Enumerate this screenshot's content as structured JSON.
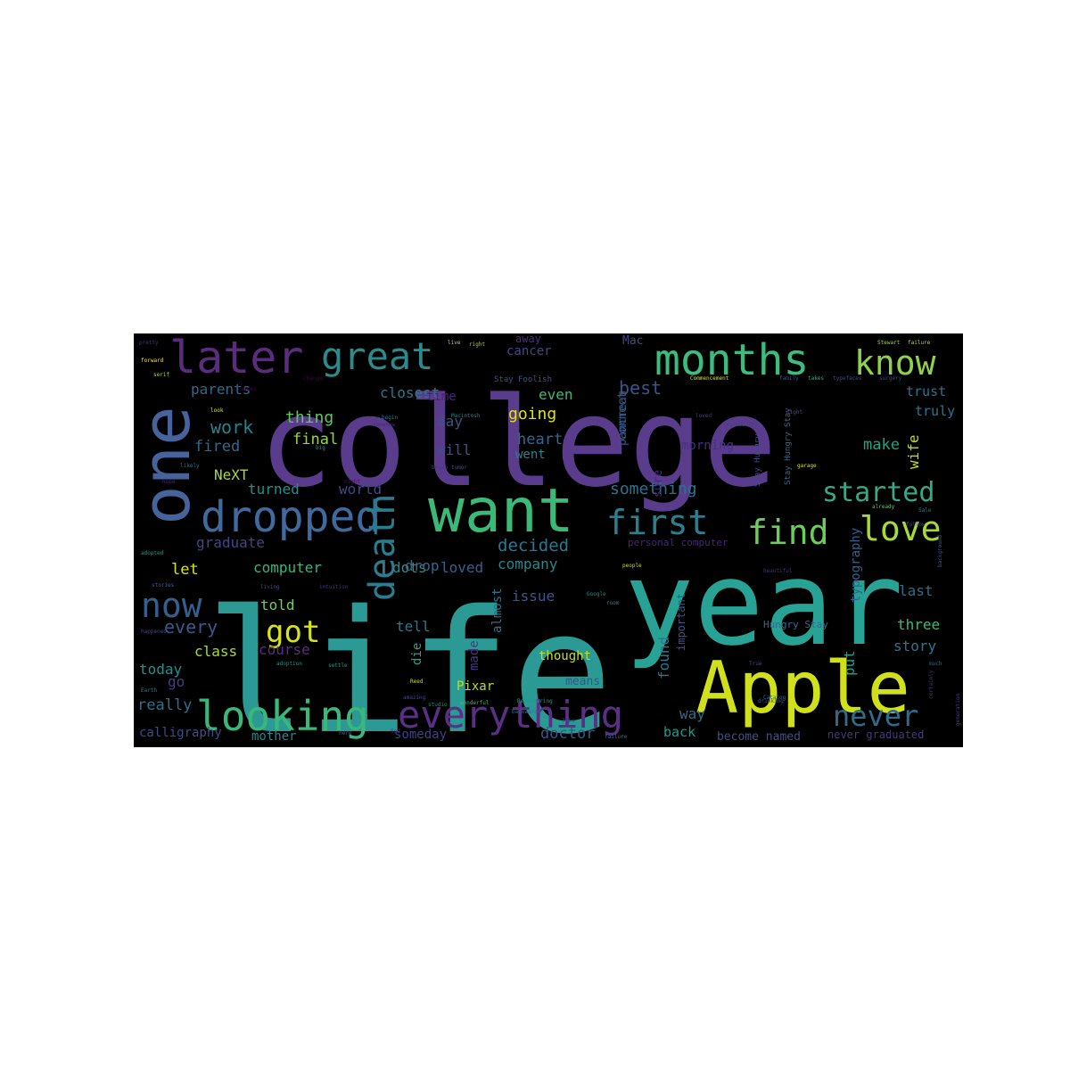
{
  "background": "#000000",
  "words": [
    {
      "text": "college",
      "color": "#5a3c8c",
      "size": 8
    },
    {
      "text": "life",
      "color": "#2b9a94",
      "size": 8
    },
    {
      "text": "year",
      "color": "#28a294",
      "size": 6
    },
    {
      "text": "Apple",
      "color": "#d0e11c",
      "size": 5
    },
    {
      "text": "one",
      "color": "#46639c",
      "size": 5
    },
    {
      "text": "want",
      "color": "#3aba76",
      "size": 5
    },
    {
      "text": "dropped",
      "color": "#3f6a9b",
      "size": 4
    },
    {
      "text": "later",
      "color": "#5b2c7e",
      "size": 4
    },
    {
      "text": "months",
      "color": "#3cbc7e",
      "size": 4
    },
    {
      "text": "looking",
      "color": "#3bb77c",
      "size": 4
    },
    {
      "text": "everything",
      "color": "#5b2f85",
      "size": 4
    },
    {
      "text": "death",
      "color": "#2a7c8e",
      "size": 4
    },
    {
      "text": "great",
      "color": "#2b8b8c",
      "size": 3
    },
    {
      "text": "know",
      "color": "#8fd14a",
      "size": 3
    },
    {
      "text": "first",
      "color": "#2e7f8e",
      "size": 3
    },
    {
      "text": "find",
      "color": "#6ccd5a",
      "size": 3
    },
    {
      "text": "love",
      "color": "#a6db36",
      "size": 3
    },
    {
      "text": "now",
      "color": "#34608d",
      "size": 3
    },
    {
      "text": "got",
      "color": "#d6e21a",
      "size": 3
    },
    {
      "text": "never",
      "color": "#2d6d8e",
      "size": 3
    },
    {
      "text": "started",
      "color": "#37a98a",
      "size": 2
    },
    {
      "text": "parents",
      "color": "#31688e",
      "size": 1
    },
    {
      "text": "closest",
      "color": "#2a788e",
      "size": 1
    },
    {
      "text": "even",
      "color": "#3bbb75",
      "size": 1
    },
    {
      "text": "best",
      "color": "#39568c",
      "size": 1
    },
    {
      "text": "cancer",
      "color": "#3e4a89",
      "size": 1
    },
    {
      "text": "away",
      "color": "#46337e",
      "size": 1
    },
    {
      "text": "Mac",
      "color": "#3e4a89",
      "size": 1
    },
    {
      "text": "time",
      "color": "#482374",
      "size": 1
    },
    {
      "text": "connect",
      "color": "#33638d",
      "size": 1
    },
    {
      "text": "pancreas",
      "color": "#3a548c",
      "size": 1
    },
    {
      "text": "trust",
      "color": "#2c728e",
      "size": 1
    },
    {
      "text": "truly",
      "color": "#2a768e",
      "size": 1
    },
    {
      "text": "work",
      "color": "#25848e",
      "size": 2
    },
    {
      "text": "thing",
      "color": "#5ec962",
      "size": 1
    },
    {
      "text": "final",
      "color": "#93d741",
      "size": 1
    },
    {
      "text": "fired",
      "color": "#31688e",
      "size": 1
    },
    {
      "text": "going",
      "color": "#dfe318",
      "size": 1
    },
    {
      "text": "day",
      "color": "#3b528b",
      "size": 1
    },
    {
      "text": "heart",
      "color": "#31688e",
      "size": 1
    },
    {
      "text": "went",
      "color": "#25838e",
      "size": 1
    },
    {
      "text": "morning",
      "color": "#46327e",
      "size": 1
    },
    {
      "text": "will",
      "color": "#3b528b",
      "size": 1
    },
    {
      "text": "make",
      "color": "#20a386",
      "size": 1
    },
    {
      "text": "wife",
      "color": "#bddf26",
      "size": 1
    },
    {
      "text": "NeXT",
      "color": "#a5db36",
      "size": 1
    },
    {
      "text": "turned",
      "color": "#21918c",
      "size": 1
    },
    {
      "text": "world",
      "color": "#3e4989",
      "size": 1
    },
    {
      "text": "something",
      "color": "#2c728e",
      "size": 1
    },
    {
      "text": "sure",
      "color": "#482677",
      "size": 1
    },
    {
      "text": "graduate",
      "color": "#414487",
      "size": 1
    },
    {
      "text": "dots",
      "color": "#21918c",
      "size": 1
    },
    {
      "text": "loved",
      "color": "#34618d",
      "size": 1
    },
    {
      "text": "decided",
      "color": "#2a788e",
      "size": 1
    },
    {
      "text": "personal computer",
      "color": "#482575",
      "size": 1
    },
    {
      "text": "let",
      "color": "#dde318",
      "size": 1
    },
    {
      "text": "computer",
      "color": "#35b779",
      "size": 1
    },
    {
      "text": "drop",
      "color": "#31688e",
      "size": 1
    },
    {
      "text": "company",
      "color": "#23898e",
      "size": 1
    },
    {
      "text": "typography",
      "color": "#33638d",
      "size": 1
    },
    {
      "text": "told",
      "color": "#73d056",
      "size": 1
    },
    {
      "text": "every",
      "color": "#38598c",
      "size": 1
    },
    {
      "text": "tell",
      "color": "#2a788e",
      "size": 1
    },
    {
      "text": "almost",
      "color": "#2c728e",
      "size": 1
    },
    {
      "text": "issue",
      "color": "#39568c",
      "size": 1
    },
    {
      "text": "last",
      "color": "#2f6c8e",
      "size": 1
    },
    {
      "text": "three",
      "color": "#3dbc74",
      "size": 1
    },
    {
      "text": "class",
      "color": "#a8db34",
      "size": 1
    },
    {
      "text": "course",
      "color": "#5c2c84",
      "size": 1
    },
    {
      "text": "made",
      "color": "#443983",
      "size": 1
    },
    {
      "text": "important",
      "color": "#3b528b",
      "size": 1
    },
    {
      "text": "story",
      "color": "#2b758e",
      "size": 1
    },
    {
      "text": "put",
      "color": "#1f9e89",
      "size": 1
    },
    {
      "text": "today",
      "color": "#21918c",
      "size": 1
    },
    {
      "text": "die",
      "color": "#22a785",
      "size": 1
    },
    {
      "text": "thought",
      "color": "#c2df23",
      "size": 1
    },
    {
      "text": "found",
      "color": "#2a788e",
      "size": 1
    },
    {
      "text": "go",
      "color": "#433e85",
      "size": 1
    },
    {
      "text": "Pixar",
      "color": "#b5de2b",
      "size": 1
    },
    {
      "text": "means",
      "color": "#3b528b",
      "size": 1
    },
    {
      "text": "really",
      "color": "#2d708e",
      "size": 1
    },
    {
      "text": "way",
      "color": "#2f6c8e",
      "size": 1
    },
    {
      "text": "calligraphy",
      "color": "#3e4c8a",
      "size": 1
    },
    {
      "text": "mother",
      "color": "#25848e",
      "size": 1
    },
    {
      "text": "someday",
      "color": "#424086",
      "size": 1
    },
    {
      "text": "doctor",
      "color": "#3a548c",
      "size": 1
    },
    {
      "text": "back",
      "color": "#1e9c89",
      "size": 1
    },
    {
      "text": "become named",
      "color": "#3b528b",
      "size": 1
    },
    {
      "text": "never graduated",
      "color": "#443983",
      "size": 1
    },
    {
      "text": "Stay Foolish",
      "color": "#3a548c",
      "size": 0
    },
    {
      "text": "Stay Hungry",
      "color": "#3e4a89",
      "size": 0
    },
    {
      "text": "Hungry Stay",
      "color": "#2f6b8e",
      "size": 0
    },
    {
      "text": "Stay Hungry Stay",
      "color": "#31688e",
      "size": 0
    },
    {
      "text": "pretty",
      "color": "#46327e",
      "size": 0
    },
    {
      "text": "live",
      "color": "#a5db36",
      "size": 0
    },
    {
      "text": "right",
      "color": "#9fda3a",
      "size": 0
    },
    {
      "text": "Stewart",
      "color": "#a0da39",
      "size": 0
    },
    {
      "text": "failure",
      "color": "#a8db34",
      "size": 0
    },
    {
      "text": "forward",
      "color": "#fde725",
      "size": 0
    },
    {
      "text": "serif",
      "color": "#a2da37",
      "size": 0
    },
    {
      "text": "change",
      "color": "#440154",
      "size": 0
    },
    {
      "text": "Commencement",
      "color": "#c8e020",
      "size": 0
    },
    {
      "text": "family",
      "color": "#3b528b",
      "size": 0
    },
    {
      "text": "takes",
      "color": "#29af7f",
      "size": 0
    },
    {
      "text": "typefaces",
      "color": "#3f4889",
      "size": 0
    },
    {
      "text": "surgery",
      "color": "#3f4788",
      "size": 0
    },
    {
      "text": "look",
      "color": "#dde318",
      "size": 0
    },
    {
      "text": "begin",
      "color": "#2a788e",
      "size": 0
    },
    {
      "text": "somehow",
      "color": "#482979",
      "size": 0
    },
    {
      "text": "Macintosh",
      "color": "#25838e",
      "size": 0
    },
    {
      "text": "loved",
      "color": "#443a83",
      "size": 0
    },
    {
      "text": "successful",
      "color": "#414487",
      "size": 0
    },
    {
      "text": "night",
      "color": "#3e4a89",
      "size": 0
    },
    {
      "text": "big",
      "color": "#20a486",
      "size": 0
    },
    {
      "text": "classes",
      "color": "#440154",
      "size": 0
    },
    {
      "text": "likely",
      "color": "#2d718e",
      "size": 0
    },
    {
      "text": "might",
      "color": "#471063",
      "size": 0
    },
    {
      "text": "began",
      "color": "#433d84",
      "size": 0
    },
    {
      "text": "tumor",
      "color": "#3b528b",
      "size": 0
    },
    {
      "text": "garage",
      "color": "#d8e219",
      "size": 0
    },
    {
      "text": "already",
      "color": "#5ec962",
      "size": 0
    },
    {
      "text": "follow",
      "color": "#3f4788",
      "size": 0
    },
    {
      "text": "hope",
      "color": "#482878",
      "size": 0
    },
    {
      "text": "Sale",
      "color": "#2c738e",
      "size": 0
    },
    {
      "text": "adopted",
      "color": "#1e9b8a",
      "size": 0
    },
    {
      "text": "people",
      "color": "#c0df25",
      "size": 0
    },
    {
      "text": "beautiful",
      "color": "#472f7d",
      "size": 0
    },
    {
      "text": "background",
      "color": "#3b528b",
      "size": 0
    },
    {
      "text": "living",
      "color": "#3e4a89",
      "size": 0
    },
    {
      "text": "intuition",
      "color": "#46307e",
      "size": 0
    },
    {
      "text": "stories",
      "color": "#31688e",
      "size": 0
    },
    {
      "text": "happened",
      "color": "#3f4889",
      "size": 0
    },
    {
      "text": "adoption",
      "color": "#1f948c",
      "size": 0
    },
    {
      "text": "settle",
      "color": "#1e9d89",
      "size": 0
    },
    {
      "text": "Earth",
      "color": "#2a788e",
      "size": 0
    },
    {
      "text": "wonderful",
      "color": "#3aba76",
      "size": 0
    },
    {
      "text": "Remembering",
      "color": "#1e9b8a",
      "size": 0
    },
    {
      "text": "backwards",
      "color": "#31688e",
      "size": 0
    },
    {
      "text": "studio",
      "color": "#238a8d",
      "size": 0
    },
    {
      "text": "room",
      "color": "#25858e",
      "size": 0
    },
    {
      "text": "Google",
      "color": "#23898e",
      "size": 0
    },
    {
      "text": "Catalog",
      "color": "#2c728e",
      "size": 0
    },
    {
      "text": "Jobs",
      "color": "#3e4989",
      "size": 0
    },
    {
      "text": "failure",
      "color": "#2c738e",
      "size": 0
    },
    {
      "text": "generation",
      "color": "#433e85",
      "size": 0
    },
    {
      "text": "certainly",
      "color": "#46307e",
      "size": 0
    },
    {
      "text": "amazing",
      "color": "#3e4c8a",
      "size": 0
    },
    {
      "text": "Reed",
      "color": "#c2df23",
      "size": 0
    },
    {
      "text": "God",
      "color": "#482475",
      "size": 0
    },
    {
      "text": "here",
      "color": "#34618d",
      "size": 0
    },
    {
      "text": "drinking",
      "color": "#3a548c",
      "size": 0
    },
    {
      "text": "True",
      "color": "#3e4a89",
      "size": 0
    },
    {
      "text": "much",
      "color": "#2f6c8e",
      "size": 0
    }
  ]
}
